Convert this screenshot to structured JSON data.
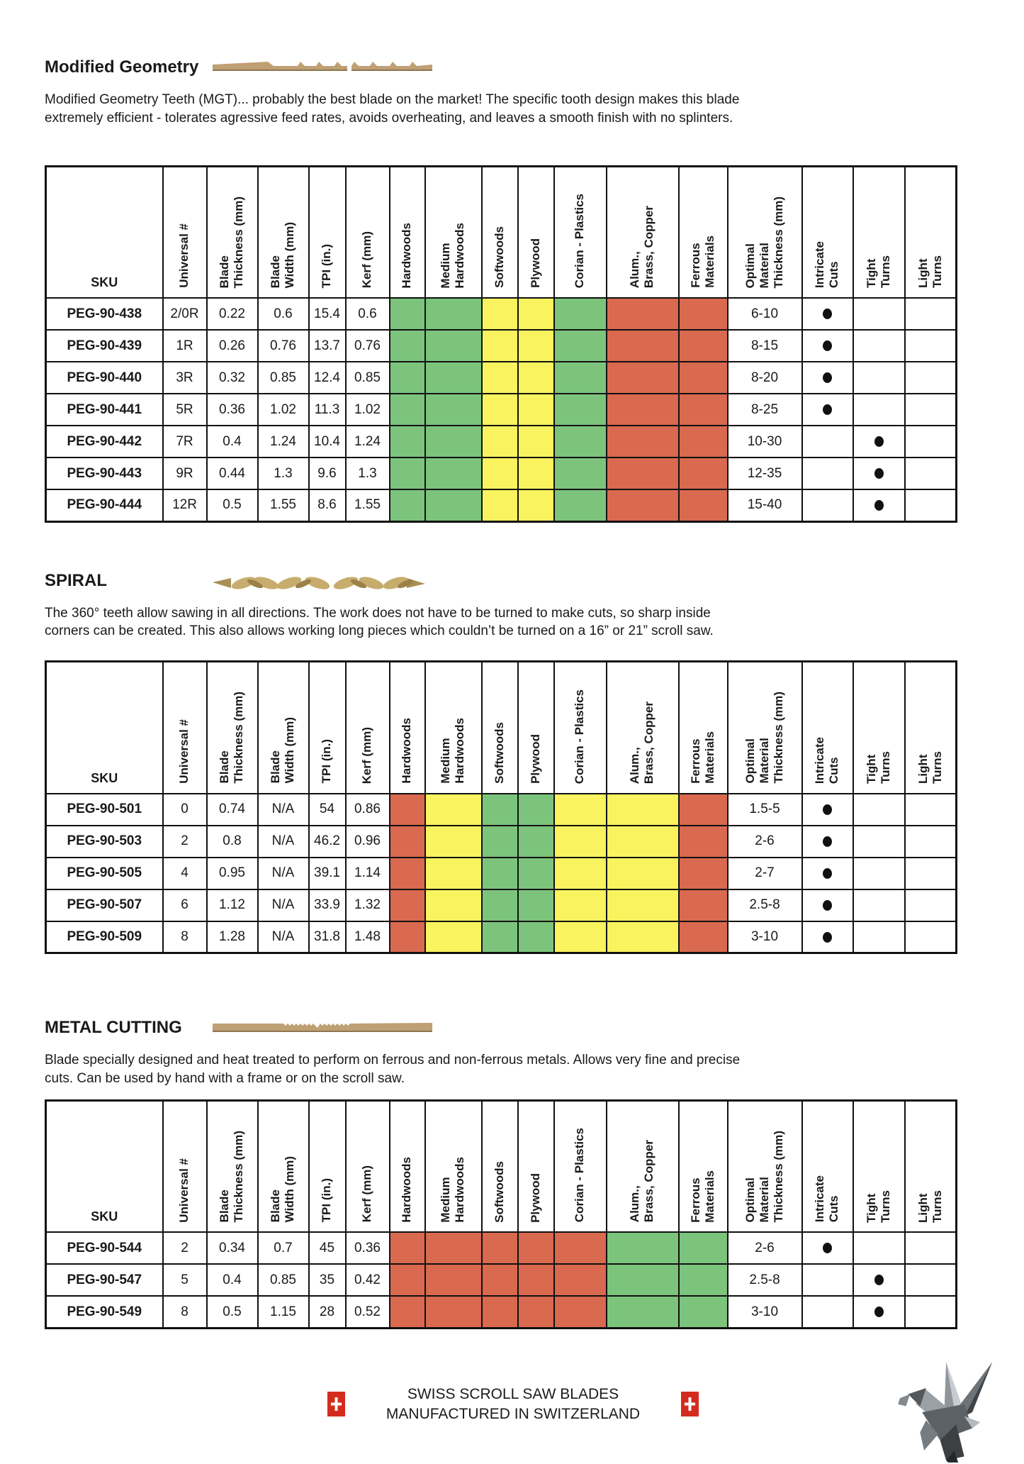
{
  "colors": {
    "green": "#7CC47C",
    "yellow": "#F8F35F",
    "red": "#D9694F",
    "swiss_red": "#D52B1E",
    "blade_tan": "#BFA075",
    "blade_gold": "#C7AD6D"
  },
  "sections": [
    {
      "title": "Modified Geometry",
      "blade_icon": "mgt-tooth-blade-icon",
      "description": "Modified Geometry Teeth (MGT)... probably the best blade on the market! The specific tooth design makes this blade extremely efficient - tolerates agressive feed rates, avoids overheating, and leaves a smooth finish with no splinters.",
      "table": {
        "spec_headers": [
          "SKU",
          "Universal #",
          "Blade\nThickness (mm)",
          "Blade\nWidth (mm)",
          "TPI (in.)",
          "Kerf (mm)"
        ],
        "material_headers": [
          "Hardwoods",
          "Medium\nHardwoods",
          "Softwoods",
          "Plywood",
          "Corian  - Plastics",
          "Alum.,\nBrass, Copper",
          "Ferrous\nMaterials"
        ],
        "right_headers": [
          "Optimal\nMaterial\nThickness (mm)",
          "Intricate\nCuts",
          "Tight\nTurns",
          "Light\nTurns"
        ],
        "material_colors": [
          "green",
          "green",
          "yellow",
          "yellow",
          "green",
          "red",
          "red"
        ],
        "rows": [
          {
            "sku": "PEG-90-438",
            "universal": "2/0R",
            "thickness": "0.22",
            "width": "0.6",
            "tpi": "15.4",
            "kerf": "0.6",
            "optimal": "6-10",
            "mark": "intricate"
          },
          {
            "sku": "PEG-90-439",
            "universal": "1R",
            "thickness": "0.26",
            "width": "0.76",
            "tpi": "13.7",
            "kerf": "0.76",
            "optimal": "8-15",
            "mark": "intricate"
          },
          {
            "sku": "PEG-90-440",
            "universal": "3R",
            "thickness": "0.32",
            "width": "0.85",
            "tpi": "12.4",
            "kerf": "0.85",
            "optimal": "8-20",
            "mark": "intricate"
          },
          {
            "sku": "PEG-90-441",
            "universal": "5R",
            "thickness": "0.36",
            "width": "1.02",
            "tpi": "11.3",
            "kerf": "1.02",
            "optimal": "8-25",
            "mark": "intricate"
          },
          {
            "sku": "PEG-90-442",
            "universal": "7R",
            "thickness": "0.4",
            "width": "1.24",
            "tpi": "10.4",
            "kerf": "1.24",
            "optimal": "10-30",
            "mark": "tight"
          },
          {
            "sku": "PEG-90-443",
            "universal": "9R",
            "thickness": "0.44",
            "width": "1.3",
            "tpi": "9.6",
            "kerf": "1.3",
            "optimal": "12-35",
            "mark": "tight"
          },
          {
            "sku": "PEG-90-444",
            "universal": "12R",
            "thickness": "0.5",
            "width": "1.55",
            "tpi": "8.6",
            "kerf": "1.55",
            "optimal": "15-40",
            "mark": "tight"
          }
        ]
      }
    },
    {
      "title": "SPIRAL",
      "blade_icon": "spiral-blade-icon",
      "description": "The 360° teeth allow sawing in all directions. The work does not have to be turned to make cuts, so sharp inside corners can be created. This also allows working long pieces which couldn’t be turned on a 16” or 21” scroll saw.",
      "table": {
        "spec_headers": [
          "SKU",
          "Universal #",
          "Blade\nThickness (mm)",
          "Blade\nWidth (mm)",
          "TPI (in.)",
          "Kerf (mm)"
        ],
        "material_headers": [
          "Hardwoods",
          "Medium\nHardwoods",
          "Softwoods",
          "Plywood",
          "Corian  - Plastics",
          "Alum.,\nBrass, Copper",
          "Ferrous\nMaterials"
        ],
        "right_headers": [
          "Optimal\nMaterial\nThickness (mm)",
          "Intricate\nCuts",
          "Tight\nTurns",
          "Light\nTurns"
        ],
        "material_colors": [
          "red",
          "yellow",
          "green",
          "green",
          "yellow",
          "yellow",
          "red"
        ],
        "rows": [
          {
            "sku": "PEG-90-501",
            "universal": "0",
            "thickness": "0.74",
            "width": "N/A",
            "tpi": "54",
            "kerf": "0.86",
            "optimal": "1.5-5",
            "mark": "intricate"
          },
          {
            "sku": "PEG-90-503",
            "universal": "2",
            "thickness": "0.8",
            "width": "N/A",
            "tpi": "46.2",
            "kerf": "0.96",
            "optimal": "2-6",
            "mark": "intricate"
          },
          {
            "sku": "PEG-90-505",
            "universal": "4",
            "thickness": "0.95",
            "width": "N/A",
            "tpi": "39.1",
            "kerf": "1.14",
            "optimal": "2-7",
            "mark": "intricate"
          },
          {
            "sku": "PEG-90-507",
            "universal": "6",
            "thickness": "1.12",
            "width": "N/A",
            "tpi": "33.9",
            "kerf": "1.32",
            "optimal": "2.5-8",
            "mark": "intricate"
          },
          {
            "sku": "PEG-90-509",
            "universal": "8",
            "thickness": "1.28",
            "width": "N/A",
            "tpi": "31.8",
            "kerf": "1.48",
            "optimal": "3-10",
            "mark": "intricate"
          }
        ]
      }
    },
    {
      "title": "METAL CUTTING",
      "blade_icon": "metal-cutting-blade-icon",
      "description": "Blade specially designed and heat treated to perform on ferrous and non-ferrous metals. Allows very fine and precise cuts. Can be used by hand with a frame or on the scroll saw.",
      "table": {
        "spec_headers": [
          "SKU",
          "Universal #",
          "Blade\nThickness (mm)",
          "Blade\nWidth (mm)",
          "TPI (in.)",
          "Kerf (mm)"
        ],
        "material_headers": [
          "Hardwoods",
          "Medium\nHardwoods",
          "Softwoods",
          "Plywood",
          "Corian  - Plastics",
          "Alum.,\nBrass, Copper",
          "Ferrous\nMaterials"
        ],
        "right_headers": [
          "Optimal\nMaterial\nThickness (mm)",
          "Intricate\nCuts",
          "Tight\nTurns",
          "Light\nTurns"
        ],
        "material_colors": [
          "red",
          "red",
          "red",
          "red",
          "red",
          "green",
          "green"
        ],
        "rows": [
          {
            "sku": "PEG-90-544",
            "universal": "2",
            "thickness": "0.34",
            "width": "0.7",
            "tpi": "45",
            "kerf": "0.36",
            "optimal": "2-6",
            "mark": "intricate"
          },
          {
            "sku": "PEG-90-547",
            "universal": "5",
            "thickness": "0.4",
            "width": "0.85",
            "tpi": "35",
            "kerf": "0.42",
            "optimal": "2.5-8",
            "mark": "tight"
          },
          {
            "sku": "PEG-90-549",
            "universal": "8",
            "thickness": "0.5",
            "width": "1.15",
            "tpi": "28",
            "kerf": "0.52",
            "optimal": "3-10",
            "mark": "tight"
          }
        ]
      }
    }
  ],
  "footer": {
    "line1": "SWISS SCROLL SAW BLADES",
    "line2": "MANUFACTURED IN SWITZERLAND",
    "flag_icon": "swiss-flag-icon",
    "logo_icon": "pegasus-origami-logo-icon"
  }
}
